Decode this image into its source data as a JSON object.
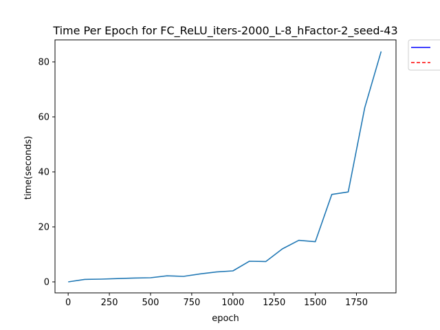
{
  "chart_data": {
    "type": "line",
    "title": "Time Per Epoch for FC_ReLU_iters-2000_L-8_hFactor-2_seed-43",
    "xlabel": "epoch",
    "ylabel": "time(seconds)",
    "xlim": [
      -80,
      1990
    ],
    "ylim": [
      -4,
      88
    ],
    "xticks": [
      0,
      250,
      500,
      750,
      1000,
      1250,
      1500,
      1750
    ],
    "yticks": [
      0,
      20,
      40,
      60,
      80
    ],
    "grid": false,
    "legend_position": "outside-top-right",
    "series": [
      {
        "color": "#1f77b4",
        "x": [
          0,
          100,
          200,
          300,
          400,
          500,
          600,
          700,
          800,
          900,
          1000,
          1100,
          1200,
          1300,
          1400,
          1500,
          1600,
          1700,
          1800,
          1900
        ],
        "y": [
          0.0,
          0.9,
          1.0,
          1.2,
          1.4,
          1.5,
          2.2,
          2.0,
          2.9,
          3.6,
          4.0,
          7.5,
          7.4,
          12.0,
          15.1,
          14.6,
          31.8,
          32.7,
          63.3,
          83.8
        ]
      }
    ],
    "legend": [
      {
        "label": "",
        "color": "#0000ff",
        "style": "solid"
      },
      {
        "label": "",
        "color": "#ff0000",
        "style": "dashed"
      }
    ]
  }
}
